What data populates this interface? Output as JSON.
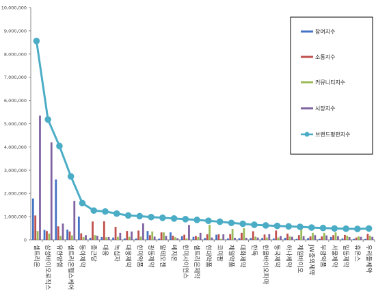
{
  "chart_data": {
    "type": "bar",
    "combo_line_series": "브랜드평판지수",
    "categories": [
      "셀트리온",
      "삼성바이오로직스",
      "유한양행",
      "셀트리온헬스케어",
      "동아제약",
      "종근당",
      "대웅",
      "녹십자",
      "대웅제약",
      "한미약품",
      "광동제약",
      "알테오젠",
      "메지온",
      "한미사이언스",
      "셀트리온제약",
      "현대약품",
      "코미팜",
      "제일약품",
      "대화제약",
      "한독",
      "한올바이오파마",
      "동국제약",
      "하나제약",
      "제일바이오",
      "JW중외제약",
      "부광약품",
      "서울제약",
      "일동제약",
      "휴온스",
      "우리들제약"
    ],
    "series": [
      {
        "name": "참여지수",
        "color": "#4472c4",
        "values": [
          1780000,
          430000,
          2600000,
          440000,
          1000000,
          90000,
          120000,
          100000,
          60000,
          60000,
          380000,
          50000,
          320000,
          160000,
          130000,
          80000,
          220000,
          60000,
          70000,
          80000,
          80000,
          60000,
          90000,
          40000,
          80000,
          40000,
          120000,
          60000,
          40000,
          40000
        ]
      },
      {
        "name": "소통지수",
        "color": "#c0504d",
        "values": [
          1050000,
          380000,
          580000,
          360000,
          280000,
          790000,
          800000,
          560000,
          380000,
          400000,
          200000,
          320000,
          180000,
          220000,
          170000,
          240000,
          240000,
          250000,
          300000,
          370000,
          230000,
          400000,
          270000,
          200000,
          150000,
          150000,
          200000,
          210000,
          100000,
          260000
        ]
      },
      {
        "name": "커뮤니티지수",
        "color": "#9bbb59",
        "values": [
          380000,
          270000,
          170000,
          190000,
          120000,
          200000,
          110000,
          130000,
          130000,
          140000,
          360000,
          320000,
          110000,
          60000,
          120000,
          650000,
          40000,
          470000,
          500000,
          140000,
          100000,
          100000,
          150000,
          500000,
          300000,
          300000,
          320000,
          180000,
          150000,
          180000
        ]
      },
      {
        "name": "시장지수",
        "color": "#8064a2",
        "values": [
          5350000,
          4200000,
          700000,
          1680000,
          200000,
          180000,
          120000,
          300000,
          360000,
          710000,
          140000,
          170000,
          70000,
          640000,
          300000,
          100000,
          240000,
          90000,
          90000,
          100000,
          250000,
          170000,
          130000,
          160000,
          200000,
          190000,
          160000,
          120000,
          130000,
          130000
        ]
      },
      {
        "name": "브랜드평판지수",
        "color": "#4bacc6",
        "values": [
          8560000,
          5180000,
          4040000,
          2730000,
          1580000,
          1260000,
          1220000,
          1130000,
          1050000,
          1020000,
          980000,
          950000,
          920000,
          890000,
          860000,
          820000,
          780000,
          730000,
          690000,
          650000,
          620000,
          600000,
          580000,
          560000,
          530000,
          510000,
          490000,
          480000,
          470000,
          490000
        ]
      }
    ],
    "ylim": [
      0,
      10000000
    ],
    "yticks": [
      0,
      1000000,
      2000000,
      3000000,
      4000000,
      5000000,
      6000000,
      7000000,
      8000000,
      9000000,
      10000000
    ],
    "ytick_labels": [
      "0",
      "1,000,000",
      "2,000,000",
      "3,000,000",
      "4,000,000",
      "5,000,000",
      "6,000,000",
      "7,000,000",
      "8,000,000",
      "9,000,000",
      "10,000,000"
    ],
    "legend": "right",
    "grid": false
  }
}
